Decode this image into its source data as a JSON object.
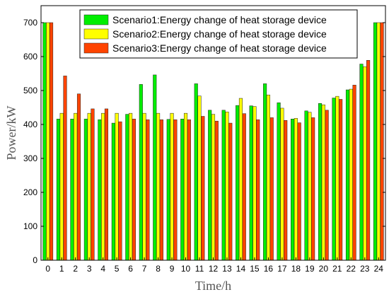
{
  "chart_data": {
    "type": "bar",
    "xlabel": "Time/h",
    "ylabel": "Power/kW",
    "ylim": [
      0,
      750
    ],
    "yticks": [
      0,
      100,
      200,
      300,
      400,
      500,
      600,
      700
    ],
    "categories": [
      "0",
      "1",
      "2",
      "3",
      "4",
      "5",
      "6",
      "7",
      "8",
      "9",
      "10",
      "11",
      "12",
      "13",
      "14",
      "15",
      "16",
      "17",
      "18",
      "19",
      "20",
      "21",
      "22",
      "23",
      "24"
    ],
    "legend_position": "top-right",
    "grid": false,
    "series": [
      {
        "name": "Scenario1:Energy change of heat storage device",
        "color": "#00ee00",
        "values": [
          700,
          416,
          416,
          416,
          414,
          404,
          430,
          518,
          546,
          415,
          416,
          520,
          442,
          442,
          456,
          455,
          520,
          464,
          416,
          440,
          462,
          478,
          502,
          578,
          700
        ]
      },
      {
        "name": "Scenario2:Energy change of heat storage device",
        "color": "#ffff00",
        "values": [
          700,
          433,
          433,
          433,
          433,
          433,
          433,
          433,
          433,
          433,
          433,
          484,
          430,
          437,
          477,
          453,
          487,
          448,
          418,
          436,
          458,
          483,
          504,
          570,
          700
        ]
      },
      {
        "name": "Scenario3:Energy change of heat storage device",
        "color": "#ff4400",
        "values": [
          700,
          543,
          490,
          446,
          446,
          408,
          416,
          414,
          414,
          414,
          414,
          424,
          410,
          404,
          432,
          414,
          420,
          412,
          405,
          420,
          442,
          474,
          516,
          589,
          700
        ]
      }
    ]
  }
}
